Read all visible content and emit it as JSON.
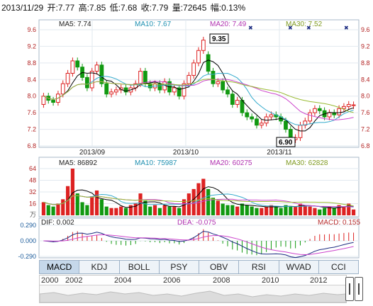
{
  "info": {
    "date": "2013/11/29",
    "open": "开:7.77",
    "high": "高:7.85",
    "low": "低:7.68",
    "close": "收:7.79",
    "volume": "量:72645",
    "change": "幅:0.13%"
  },
  "price_panel": {
    "ma5": "MA5: 7.74",
    "ma10": "MA10: 7.67",
    "ma20": "MA20: 7.49",
    "ma30": "MA30: 7.52",
    "y_ticks": [
      "9.6",
      "9.2",
      "8.8",
      "8.4",
      "8.0",
      "7.6",
      "7.2",
      "6.8"
    ],
    "y_values": [
      9.6,
      9.2,
      8.8,
      8.4,
      8.0,
      7.6,
      7.2,
      6.8
    ],
    "x_ticks": [
      "2013/09",
      "2013/10",
      "2013/11"
    ],
    "high_callout": "9.35",
    "low_callout": "6.90",
    "colors": {
      "ma5": "#000000",
      "ma10": "#33aacc",
      "ma20": "#cc44cc",
      "ma30": "#99bb33",
      "up": "#dd2222",
      "down": "#119911"
    }
  },
  "volume_panel": {
    "ma5": "MA5: 86892",
    "ma10": "MA10: 75987",
    "ma20": "MA20: 60275",
    "ma30": "MA30: 62828",
    "y_ticks": [
      "64",
      "48",
      "32",
      "16",
      "万"
    ],
    "unit": "万"
  },
  "macd_panel": {
    "dif": "DIF: 0.002",
    "dea": "DEA: -0.075",
    "macd": "MACD: 0.155",
    "y_ticks": [
      "0.290",
      "0.000",
      "-0.290"
    ]
  },
  "tabs": [
    "MACD",
    "KDJ",
    "BOLL",
    "PSY",
    "OBV",
    "RSI",
    "WVAD",
    "CCI"
  ],
  "active_tab": "MACD",
  "timeline": {
    "years": [
      "2000",
      "2002",
      "2004",
      "2006",
      "2008",
      "2010",
      "2012"
    ]
  },
  "chart_data": {
    "type": "candlestick",
    "ylim": [
      6.8,
      9.6
    ],
    "x_labels": [
      "2013/09",
      "2013/10",
      "2013/11"
    ],
    "close": [
      8.0,
      7.9,
      7.85,
      8.05,
      8.3,
      8.55,
      8.85,
      8.7,
      8.45,
      8.2,
      8.6,
      8.75,
      8.3,
      8.05,
      8.1,
      8.15,
      8.2,
      8.1,
      8.2,
      8.3,
      8.6,
      8.3,
      8.2,
      8.3,
      8.15,
      8.35,
      8.1,
      8.2,
      8.0,
      8.3,
      8.5,
      8.8,
      9.1,
      9.35,
      8.6,
      8.3,
      8.35,
      8.15,
      8.05,
      7.8,
      7.9,
      7.6,
      7.5,
      7.45,
      7.3,
      7.35,
      7.5,
      7.55,
      7.5,
      7.4,
      7.2,
      6.9,
      7.0,
      7.3,
      7.4,
      7.6,
      7.7,
      7.65,
      7.5,
      7.6,
      7.55,
      7.7,
      7.75,
      7.8,
      7.79
    ],
    "open": [
      7.8,
      8.0,
      7.9,
      7.85,
      8.05,
      8.3,
      8.55,
      8.85,
      8.7,
      8.45,
      8.2,
      8.6,
      8.75,
      8.3,
      8.05,
      8.1,
      8.15,
      8.2,
      8.1,
      8.2,
      8.3,
      8.6,
      8.3,
      8.2,
      8.3,
      8.15,
      8.35,
      8.1,
      8.2,
      8.0,
      8.3,
      8.5,
      8.8,
      9.1,
      9.0,
      8.6,
      8.3,
      8.35,
      8.15,
      8.05,
      7.8,
      7.9,
      7.6,
      7.5,
      7.45,
      7.3,
      7.35,
      7.5,
      7.55,
      7.5,
      7.4,
      7.2,
      6.95,
      7.0,
      7.3,
      7.4,
      7.6,
      7.7,
      7.65,
      7.5,
      7.6,
      7.55,
      7.7,
      7.75,
      7.77
    ],
    "volume": [
      18,
      14,
      12,
      16,
      22,
      40,
      64,
      30,
      18,
      14,
      26,
      34,
      22,
      12,
      10,
      10,
      12,
      10,
      14,
      16,
      30,
      20,
      12,
      14,
      10,
      14,
      12,
      12,
      10,
      22,
      30,
      36,
      44,
      50,
      36,
      24,
      20,
      16,
      14,
      14,
      12,
      16,
      14,
      12,
      10,
      10,
      12,
      14,
      12,
      10,
      14,
      12,
      12,
      16,
      14,
      12,
      10,
      8,
      10,
      12,
      10,
      14,
      12,
      16,
      8
    ]
  }
}
